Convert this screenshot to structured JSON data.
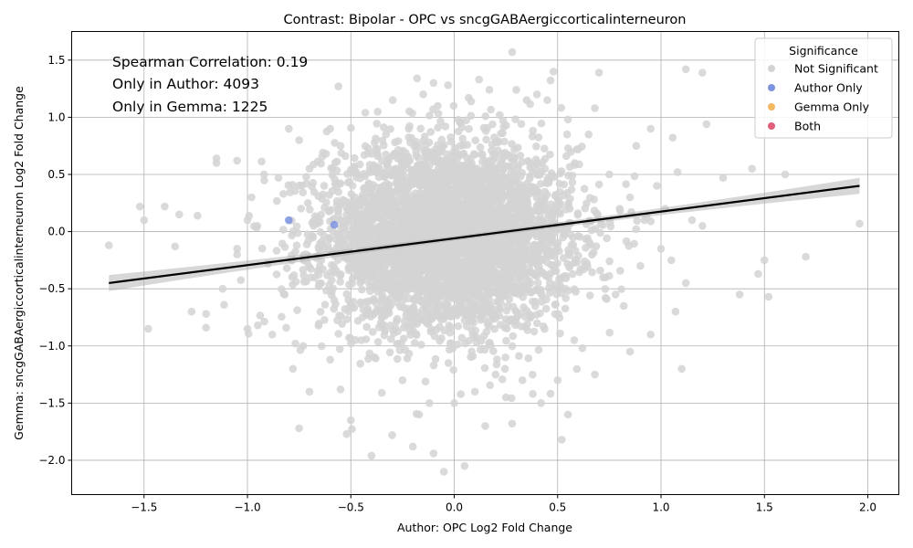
{
  "chart_data": {
    "type": "scatter",
    "title": "Contrast: Bipolar - OPC vs sncgGABAergiccorticalinterneuron",
    "xlabel": "Author: OPC Log2 Fold Change",
    "ylabel": "Gemma: sncgGABAergiccorticalinterneuron Log2 Fold Change",
    "xlim": [
      -1.85,
      2.15
    ],
    "ylim": [
      -2.3,
      1.75
    ],
    "xticks": [
      -1.5,
      -1.0,
      -0.5,
      0.0,
      0.5,
      1.0,
      1.5,
      2.0
    ],
    "xtick_labels": [
      "−1.5",
      "−1.0",
      "−0.5",
      "0.0",
      "0.5",
      "1.0",
      "1.5",
      "2.0"
    ],
    "yticks": [
      -2.0,
      -1.5,
      -1.0,
      -0.5,
      0.0,
      0.5,
      1.0,
      1.5
    ],
    "ytick_labels": [
      "−2.0",
      "−1.5",
      "−1.0",
      "−0.5",
      "0.0",
      "0.5",
      "1.0",
      "1.5"
    ],
    "grid": true,
    "annotations": [
      "Spearman Correlation: 0.19",
      "Only in Author: 4093",
      "Only in Gemma: 1225"
    ],
    "legend": {
      "title": "Significance",
      "position": "top-right",
      "entries": [
        {
          "label": "Not Significant",
          "color": "#d3d3d3"
        },
        {
          "label": "Author Only",
          "color": "#7b93e0"
        },
        {
          "label": "Gemma Only",
          "color": "#f5b860"
        },
        {
          "label": "Both",
          "color": "#e0607a"
        }
      ]
    },
    "regression_line": {
      "x": [
        -1.67,
        1.96
      ],
      "y": [
        -0.45,
        0.4
      ],
      "color": "#000000"
    },
    "series": [
      {
        "name": "Not Significant",
        "color": "#d3d3d3",
        "points": [
          [
            -1.67,
            -0.12
          ],
          [
            -1.48,
            -0.85
          ],
          [
            -1.52,
            0.22
          ],
          [
            -1.5,
            0.1
          ],
          [
            -1.4,
            0.22
          ],
          [
            -1.35,
            -0.13
          ],
          [
            -1.33,
            0.15
          ],
          [
            -1.27,
            -0.7
          ],
          [
            -1.2,
            -0.72
          ],
          [
            -1.2,
            -0.84
          ],
          [
            -1.15,
            0.6
          ],
          [
            -1.15,
            0.64
          ],
          [
            -1.12,
            -0.5
          ],
          [
            -1.05,
            0.62
          ],
          [
            -1.05,
            -0.15
          ],
          [
            -1.05,
            -0.2
          ],
          [
            -1.0,
            -0.85
          ],
          [
            -1.0,
            0.1
          ],
          [
            -0.98,
            0.3
          ],
          [
            -0.95,
            -0.82
          ],
          [
            -0.92,
            0.5
          ],
          [
            -0.9,
            -0.28
          ],
          [
            -0.88,
            -0.9
          ],
          [
            -0.85,
            0.47
          ],
          [
            -0.82,
            -0.55
          ],
          [
            -0.8,
            0.9
          ],
          [
            -0.78,
            -1.2
          ],
          [
            -0.75,
            0.8
          ],
          [
            -0.75,
            -1.72
          ],
          [
            -0.73,
            -1.0
          ],
          [
            -0.7,
            0.55
          ],
          [
            -0.7,
            -1.4
          ],
          [
            -0.68,
            0.05
          ],
          [
            -0.65,
            -0.3
          ],
          [
            -0.62,
            0.68
          ],
          [
            -0.6,
            -1.12
          ],
          [
            -0.6,
            0.9
          ],
          [
            -0.58,
            -0.6
          ],
          [
            -0.56,
            1.27
          ],
          [
            -0.55,
            0.75
          ],
          [
            -0.55,
            -1.38
          ],
          [
            -0.52,
            -1.77
          ],
          [
            -0.5,
            -1.65
          ],
          [
            -0.48,
            0.3
          ],
          [
            -0.45,
            -0.95
          ],
          [
            -0.43,
            1.04
          ],
          [
            -0.4,
            -1.96
          ],
          [
            -0.38,
            0.72
          ],
          [
            -0.35,
            -1.41
          ],
          [
            -0.33,
            0.85
          ],
          [
            -0.3,
            -1.78
          ],
          [
            -0.28,
            0.55
          ],
          [
            -0.25,
            -1.3
          ],
          [
            -0.22,
            0.9
          ],
          [
            -0.2,
            -1.88
          ],
          [
            -0.18,
            1.34
          ],
          [
            -0.17,
            -1.6
          ],
          [
            -0.15,
            1.2
          ],
          [
            -0.12,
            -1.5
          ],
          [
            -0.1,
            1.3
          ],
          [
            -0.1,
            -1.94
          ],
          [
            -0.08,
            1.1
          ],
          [
            -0.05,
            -2.1
          ],
          [
            -0.03,
            1.28
          ],
          [
            0.0,
            -1.5
          ],
          [
            0.03,
            0.95
          ],
          [
            0.05,
            -2.05
          ],
          [
            0.07,
            1.17
          ],
          [
            0.1,
            -1.4
          ],
          [
            0.12,
            1.33
          ],
          [
            0.15,
            -1.7
          ],
          [
            0.17,
            1.24
          ],
          [
            0.2,
            -1.25
          ],
          [
            0.22,
            1.02
          ],
          [
            0.25,
            -1.45
          ],
          [
            0.28,
            1.57
          ],
          [
            0.28,
            -1.68
          ],
          [
            0.3,
            1.24
          ],
          [
            0.33,
            -1.3
          ],
          [
            0.35,
            1.15
          ],
          [
            0.38,
            -1.42
          ],
          [
            0.4,
            1.2
          ],
          [
            0.42,
            -1.5
          ],
          [
            0.45,
            1.15
          ],
          [
            0.48,
            1.4
          ],
          [
            0.5,
            -1.3
          ],
          [
            0.52,
            -1.82
          ],
          [
            0.55,
            0.98
          ],
          [
            0.55,
            -1.6
          ],
          [
            0.58,
            -0.95
          ],
          [
            0.6,
            0.72
          ],
          [
            0.62,
            -1.02
          ],
          [
            0.65,
            0.85
          ],
          [
            0.68,
            -1.25
          ],
          [
            0.68,
            1.08
          ],
          [
            0.7,
            1.39
          ],
          [
            0.72,
            -0.4
          ],
          [
            0.75,
            0.5
          ],
          [
            0.78,
            -0.55
          ],
          [
            0.8,
            0.2
          ],
          [
            0.82,
            -0.65
          ],
          [
            0.85,
            0.3
          ],
          [
            0.85,
            -1.05
          ],
          [
            0.88,
            0.75
          ],
          [
            0.9,
            -0.3
          ],
          [
            0.92,
            0.1
          ],
          [
            0.95,
            0.9
          ],
          [
            0.95,
            -0.9
          ],
          [
            0.98,
            0.4
          ],
          [
            1.0,
            -0.15
          ],
          [
            1.02,
            0.2
          ],
          [
            1.05,
            -0.25
          ],
          [
            1.07,
            -0.7
          ],
          [
            1.08,
            0.52
          ],
          [
            1.1,
            -1.2
          ],
          [
            1.12,
            1.42
          ],
          [
            1.12,
            -0.45
          ],
          [
            1.15,
            0.1
          ],
          [
            1.2,
            1.39
          ],
          [
            1.2,
            0.05
          ],
          [
            1.22,
            0.94
          ],
          [
            1.3,
            0.47
          ],
          [
            1.38,
            -0.55
          ],
          [
            1.44,
            0.55
          ],
          [
            1.47,
            -0.37
          ],
          [
            1.5,
            -0.25
          ],
          [
            1.52,
            -0.57
          ],
          [
            1.6,
            0.5
          ],
          [
            1.7,
            -0.22
          ],
          [
            1.96,
            0.07
          ]
        ],
        "dense_region": {
          "x_center": -0.03,
          "y_center": -0.05,
          "x_sd": 0.3,
          "y_sd": 0.4,
          "count": 4200
        }
      },
      {
        "name": "Author Only",
        "color": "#7b93e0",
        "points": [
          [
            -0.8,
            0.1
          ],
          [
            -0.58,
            0.06
          ]
        ]
      }
    ]
  }
}
